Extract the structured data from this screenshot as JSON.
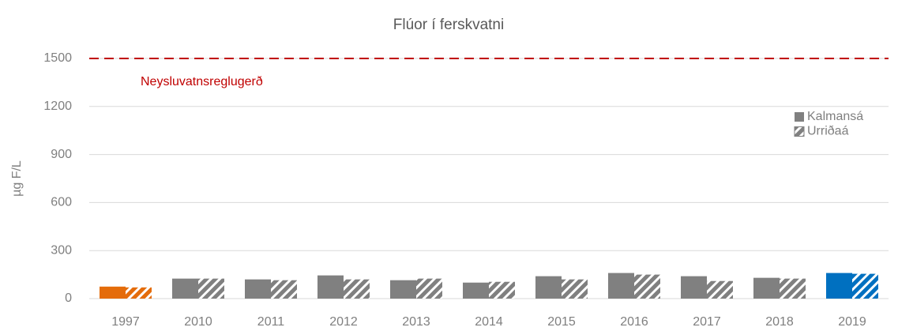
{
  "chart_data": {
    "type": "bar",
    "title": "Flúor í ferskvatni",
    "y_label": "µg F/L",
    "categories": [
      "1997",
      "2010",
      "2011",
      "2012",
      "2013",
      "2014",
      "2015",
      "2016",
      "2017",
      "2018",
      "2019"
    ],
    "series": [
      {
        "name": "Kalmansá",
        "color": "#808080",
        "pattern": "solid",
        "colors": [
          "#e46c0a",
          "#808080",
          "#808080",
          "#808080",
          "#808080",
          "#808080",
          "#808080",
          "#808080",
          "#808080",
          "#808080",
          "#0070c0"
        ],
        "values": [
          75,
          125,
          120,
          145,
          115,
          100,
          140,
          160,
          140,
          130,
          160
        ]
      },
      {
        "name": "Urriðaá",
        "color": "#808080",
        "pattern": "hatch",
        "colors": [
          "#e46c0a",
          "#808080",
          "#808080",
          "#808080",
          "#808080",
          "#808080",
          "#808080",
          "#808080",
          "#808080",
          "#808080",
          "#0070c0"
        ],
        "values": [
          70,
          125,
          115,
          120,
          125,
          105,
          120,
          150,
          110,
          125,
          155
        ]
      }
    ],
    "reference_line": {
      "value": 1500,
      "label": "Neysluvatnsreglugerð",
      "color": "#c00000"
    },
    "ylim": [
      0,
      1500
    ],
    "yticks": [
      0,
      300,
      600,
      900,
      1200,
      1500
    ],
    "grid": true,
    "legend": "right"
  }
}
